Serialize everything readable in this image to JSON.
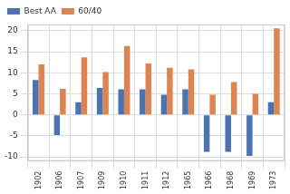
{
  "chart_data": {
    "type": "bar",
    "categories": [
      "1902",
      "1906",
      "1907",
      "1909",
      "1910",
      "1911",
      "1912",
      "1965",
      "1966",
      "1968",
      "1969",
      "1973"
    ],
    "series": [
      {
        "name": "Best AA",
        "color": "#4c72b0",
        "values": [
          8.3,
          -4.8,
          3.0,
          6.4,
          6.1,
          6.1,
          4.8,
          6.1,
          -8.8,
          -8.8,
          -9.8,
          3.0
        ]
      },
      {
        "name": "60/40",
        "color": "#dd8452",
        "values": [
          12.0,
          6.2,
          13.7,
          10.2,
          16.4,
          12.2,
          11.2,
          10.8,
          4.8,
          7.8,
          5.0,
          20.6
        ]
      }
    ],
    "ylim": [
      -11,
      21.5
    ],
    "yticks": [
      -10,
      -5,
      0,
      5,
      10,
      15,
      20
    ],
    "grid": true,
    "legend": "upper left"
  }
}
